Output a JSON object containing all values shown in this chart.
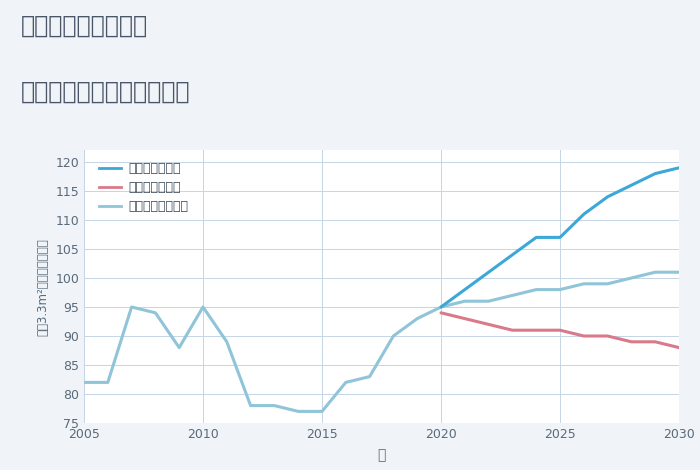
{
  "title_line1": "千葉県市原市徳氏の",
  "title_line2": "中古マンションの価格推移",
  "xlabel": "年",
  "ylabel": "坤（3.3m²）単価（万円）",
  "ylim": [
    75,
    122
  ],
  "yticks": [
    75,
    80,
    85,
    90,
    95,
    100,
    105,
    110,
    115,
    120
  ],
  "xlim": [
    2005,
    2030
  ],
  "xticks": [
    2005,
    2010,
    2015,
    2020,
    2025,
    2030
  ],
  "bg_color": "#f0f4f8",
  "plot_bg": "#ffffff",
  "grid_color": "#c5d5e5",
  "normal_scenario": {
    "label": "ノーマルシナリオ",
    "color": "#90c4d8",
    "x": [
      2005,
      2006,
      2007,
      2008,
      2009,
      2010,
      2011,
      2012,
      2013,
      2014,
      2015,
      2016,
      2017,
      2018,
      2019,
      2020,
      2021,
      2022,
      2023,
      2024,
      2025,
      2026,
      2027,
      2028,
      2029,
      2030
    ],
    "y": [
      82,
      82,
      95,
      94,
      88,
      95,
      89,
      78,
      78,
      77,
      77,
      82,
      83,
      90,
      93,
      95,
      96,
      96,
      97,
      98,
      98,
      99,
      99,
      100,
      101,
      101
    ]
  },
  "good_scenario": {
    "label": "グッドシナリオ",
    "color": "#3ba8d8",
    "x": [
      2020,
      2021,
      2022,
      2023,
      2024,
      2025,
      2026,
      2027,
      2028,
      2029,
      2030
    ],
    "y": [
      95,
      98,
      101,
      104,
      107,
      107,
      111,
      114,
      116,
      118,
      119
    ]
  },
  "bad_scenario": {
    "label": "バッドシナリオ",
    "color": "#d87a8a",
    "x": [
      2020,
      2021,
      2022,
      2023,
      2024,
      2025,
      2026,
      2027,
      2028,
      2029,
      2030
    ],
    "y": [
      94,
      93,
      92,
      91,
      91,
      91,
      90,
      90,
      89,
      89,
      88
    ]
  },
  "title_color": "#4a5568",
  "tick_color": "#5a6a7a",
  "legend_text_color": "#3a4a5a",
  "linewidth": 2.2,
  "title_fontsize": 17,
  "tick_fontsize": 9,
  "legend_fontsize": 9
}
